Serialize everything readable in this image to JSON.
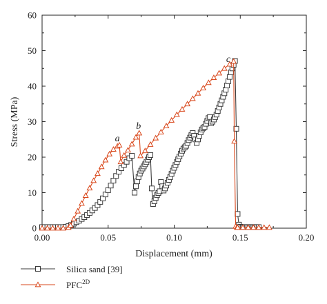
{
  "chart_data": {
    "type": "line",
    "title": "",
    "xlabel": "Displacement (mm)",
    "ylabel": "Stress (MPa)",
    "xlim": [
      0,
      0.2
    ],
    "ylim": [
      0,
      60
    ],
    "xticks": [
      "0.00",
      "0.05",
      "0.10",
      "0.15",
      "0.20"
    ],
    "yticks": [
      "0",
      "10",
      "20",
      "30",
      "40",
      "50",
      "60"
    ],
    "grid": false,
    "legend_position": "below",
    "annotations": [
      {
        "text": "a",
        "x": 0.057,
        "y": 24.5
      },
      {
        "text": "b",
        "x": 0.073,
        "y": 28.0
      },
      {
        "text": "c",
        "x": 0.141,
        "y": 46.8
      }
    ],
    "series": [
      {
        "name": "Silica sand [39]",
        "color": "#3a3a3a",
        "marker": "square",
        "x": [
          0.0,
          0.002,
          0.004,
          0.006,
          0.008,
          0.01,
          0.012,
          0.014,
          0.016,
          0.018,
          0.02,
          0.022,
          0.024,
          0.026,
          0.028,
          0.03,
          0.032,
          0.034,
          0.036,
          0.038,
          0.04,
          0.042,
          0.044,
          0.046,
          0.048,
          0.05,
          0.052,
          0.054,
          0.056,
          0.058,
          0.06,
          0.062,
          0.064,
          0.066,
          0.068,
          0.07,
          0.071,
          0.072,
          0.073,
          0.074,
          0.075,
          0.076,
          0.077,
          0.078,
          0.079,
          0.08,
          0.081,
          0.082,
          0.083,
          0.084,
          0.085,
          0.086,
          0.087,
          0.088,
          0.089,
          0.09,
          0.091,
          0.092,
          0.093,
          0.094,
          0.095,
          0.096,
          0.097,
          0.098,
          0.099,
          0.1,
          0.101,
          0.102,
          0.103,
          0.104,
          0.105,
          0.106,
          0.107,
          0.108,
          0.109,
          0.11,
          0.111,
          0.112,
          0.113,
          0.114,
          0.115,
          0.116,
          0.117,
          0.118,
          0.119,
          0.12,
          0.121,
          0.122,
          0.123,
          0.124,
          0.125,
          0.126,
          0.127,
          0.128,
          0.129,
          0.13,
          0.131,
          0.132,
          0.133,
          0.134,
          0.135,
          0.136,
          0.137,
          0.138,
          0.139,
          0.14,
          0.141,
          0.142,
          0.143,
          0.144,
          0.145,
          0.146,
          0.147,
          0.148,
          0.149,
          0.15,
          0.151,
          0.152,
          0.153,
          0.154,
          0.155,
          0.156,
          0.157,
          0.158,
          0.159,
          0.16,
          0.161,
          0.162,
          0.163,
          0.164
        ],
        "y": [
          0.3,
          0.3,
          0.3,
          0.3,
          0.3,
          0.3,
          0.3,
          0.3,
          0.3,
          0.4,
          0.6,
          0.9,
          1.3,
          1.7,
          2.1,
          2.6,
          3.1,
          3.7,
          4.3,
          5.0,
          5.7,
          6.5,
          7.4,
          8.4,
          9.5,
          10.7,
          12.0,
          13.4,
          14.7,
          15.9,
          16.9,
          17.8,
          18.7,
          19.7,
          20.4,
          10.0,
          11.8,
          13.2,
          14.4,
          15.4,
          16.2,
          16.8,
          17.4,
          18.0,
          18.6,
          19.3,
          20.0,
          20.6,
          11.2,
          6.8,
          7.6,
          8.5,
          9.3,
          9.9,
          10.4,
          13.0,
          11.8,
          10.6,
          11.2,
          12.0,
          12.8,
          13.6,
          14.4,
          15.3,
          16.2,
          17.0,
          17.8,
          18.6,
          19.4,
          20.2,
          21.0,
          21.8,
          22.4,
          22.8,
          23.2,
          24.0,
          24.8,
          25.5,
          26.2,
          26.8,
          26.0,
          25.0,
          24.0,
          25.0,
          26.0,
          27.0,
          27.8,
          28.2,
          28.5,
          29.4,
          30.2,
          31.0,
          31.3,
          29.6,
          30.0,
          30.6,
          31.3,
          32.0,
          33.0,
          34.0,
          35.0,
          36.0,
          37.0,
          38.0,
          39.0,
          40.2,
          41.4,
          42.6,
          43.9,
          45.0,
          46.0,
          47.1,
          28.0,
          4.0,
          1.0,
          0.4,
          0.3,
          0.3,
          0.3,
          0.3,
          0.3,
          0.3,
          0.3,
          0.3,
          0.3,
          0.3,
          0.3,
          0.3,
          0.3,
          0.3
        ]
      },
      {
        "name": "PFC",
        "name_superscript": "2D",
        "color": "#d9481c",
        "marker": "triangle",
        "x": [
          0.0,
          0.004,
          0.008,
          0.012,
          0.016,
          0.02,
          0.0215,
          0.024,
          0.027,
          0.03,
          0.033,
          0.036,
          0.039,
          0.042,
          0.045,
          0.048,
          0.051,
          0.054,
          0.057,
          0.0585,
          0.0595,
          0.062,
          0.065,
          0.068,
          0.071,
          0.0735,
          0.0745,
          0.078,
          0.082,
          0.086,
          0.09,
          0.094,
          0.098,
          0.102,
          0.106,
          0.11,
          0.114,
          0.118,
          0.122,
          0.126,
          0.13,
          0.134,
          0.138,
          0.142,
          0.145,
          0.1455,
          0.1465,
          0.1475,
          0.148,
          0.152,
          0.156,
          0.16,
          0.164,
          0.168,
          0.172
        ],
        "y": [
          0.0,
          0.0,
          0.0,
          0.0,
          0.0,
          0.2,
          0.8,
          2.6,
          4.8,
          7.0,
          9.2,
          11.3,
          13.4,
          15.4,
          17.3,
          19.2,
          20.9,
          22.2,
          23.1,
          23.4,
          18.7,
          20.5,
          22.0,
          23.7,
          25.6,
          26.8,
          20.4,
          21.8,
          23.6,
          25.4,
          27.1,
          28.8,
          30.4,
          32.0,
          33.5,
          35.0,
          36.5,
          38.0,
          39.5,
          41.0,
          42.4,
          43.7,
          45.0,
          46.2,
          47.0,
          24.5,
          0.5,
          0.2,
          0.2,
          0.2,
          0.2,
          0.2,
          0.2,
          0.2,
          0.2
        ]
      }
    ]
  }
}
